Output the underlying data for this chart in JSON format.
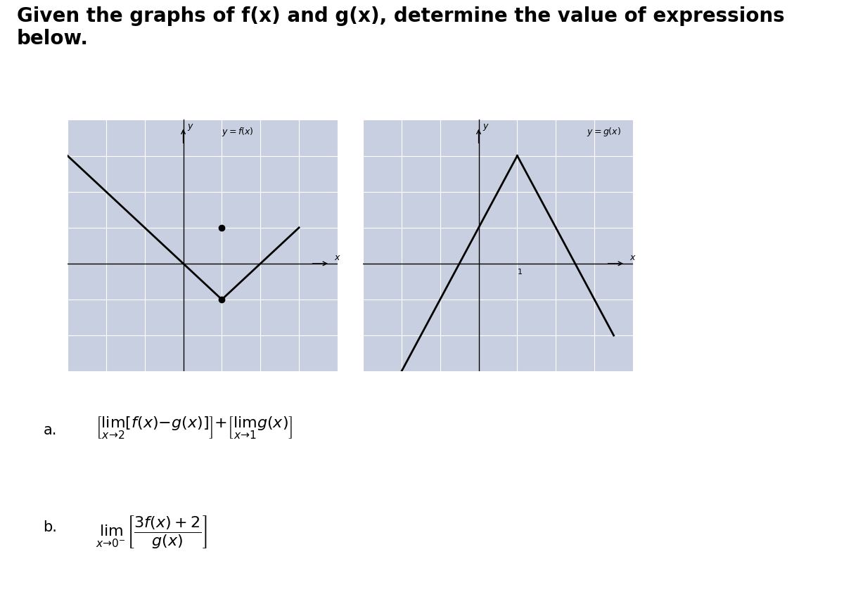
{
  "title": "Given the graphs of f(x) and g(x), determine the value of expressions\nbelow.",
  "title_fontsize": 20,
  "title_fontweight": "bold",
  "bg_color": "#d8dce8",
  "graph_bg": "#c8cfe0",
  "fig_bg": "#ffffff",
  "expr_a": "\\left[\\lim_{x \\to 2}\\left[f(x) - g(x)\\right]\\right] + \\left[\\lim_{x \\to 1} g(x)\\right]",
  "expr_b": "\\lim_{x \\to 0^{-}} \\left[\\dfrac{3f(x) + 2}{g(x)}\\right]"
}
